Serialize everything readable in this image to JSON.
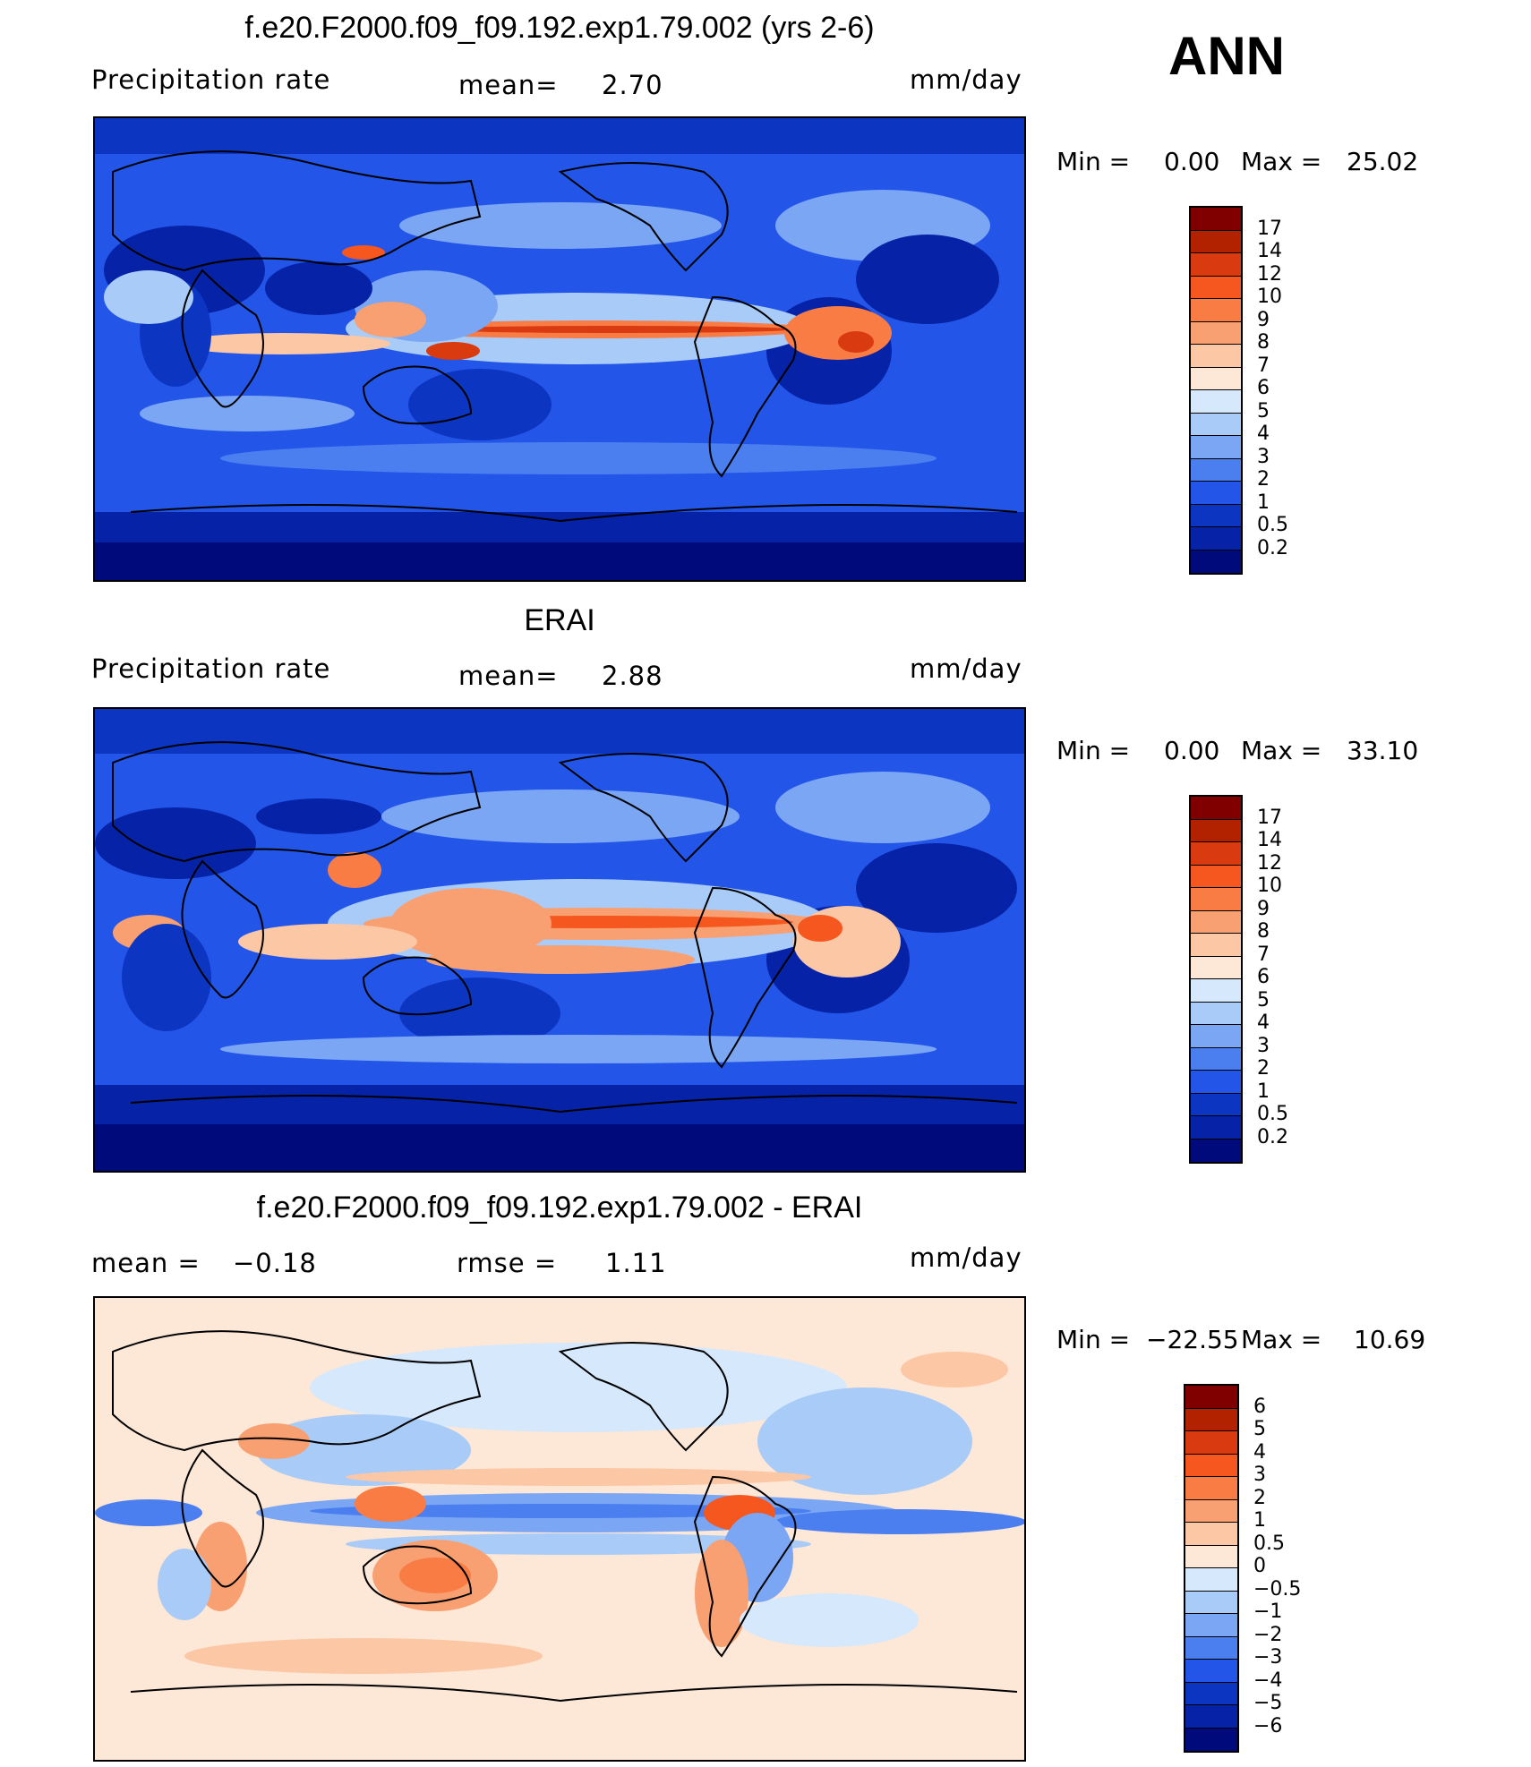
{
  "season": "ANN",
  "panels": [
    {
      "title": "f.e20.F2000.f09_f09.192.exp1.79.002 (yrs 2-6)",
      "left_label": "Precipitation  rate",
      "mid_label": "mean=",
      "mid_value": "2.70",
      "units": "mm/day",
      "min_label": "Min  =",
      "min_value": "0.00",
      "max_label": "Max  =",
      "max_value": "25.02"
    },
    {
      "title": "ERAI",
      "left_label": "Precipitation  rate",
      "mid_label": "mean=",
      "mid_value": "2.88",
      "units": "mm/day",
      "min_label": "Min  =",
      "min_value": "0.00",
      "max_label": "Max  =",
      "max_value": "33.10"
    },
    {
      "title": "f.e20.F2000.f09_f09.192.exp1.79.002 - ERAI",
      "left_label": "mean  =",
      "left_value": "−0.18",
      "mid_label": "rmse  =",
      "mid_value": "1.11",
      "units": "mm/day",
      "min_label": "Min  =",
      "min_value": "−22.55",
      "max_label": "Max  =",
      "max_value": "10.69"
    }
  ],
  "colorbars": {
    "precip": {
      "ticks": [
        "17",
        "14",
        "12",
        "10",
        "9",
        "8",
        "7",
        "6",
        "5",
        "4",
        "3",
        "2",
        "1",
        "0.5",
        "0.2"
      ],
      "colors": [
        "#800000",
        "#b22200",
        "#d93a10",
        "#f5571f",
        "#f97c45",
        "#f8a072",
        "#fcc7a5",
        "#fde7d7",
        "#d6e8fb",
        "#a9cbf7",
        "#7aa6f4",
        "#4b7ff0",
        "#2356e8",
        "#0c35c2",
        "#0622a6",
        "#000a7a"
      ]
    },
    "diff": {
      "ticks": [
        "6",
        "5",
        "4",
        "3",
        "2",
        "1",
        "0.5",
        "0",
        "−0.5",
        "−1",
        "−2",
        "−3",
        "−4",
        "−5",
        "−6"
      ],
      "colors": [
        "#800000",
        "#b22200",
        "#d93a10",
        "#f5571f",
        "#f97c45",
        "#f8a072",
        "#fcc7a5",
        "#fde7d7",
        "#d6e8fb",
        "#a9cbf7",
        "#7aa6f4",
        "#4b7ff0",
        "#2356e8",
        "#0c35c2",
        "#0622a6",
        "#000a7a"
      ]
    }
  }
}
